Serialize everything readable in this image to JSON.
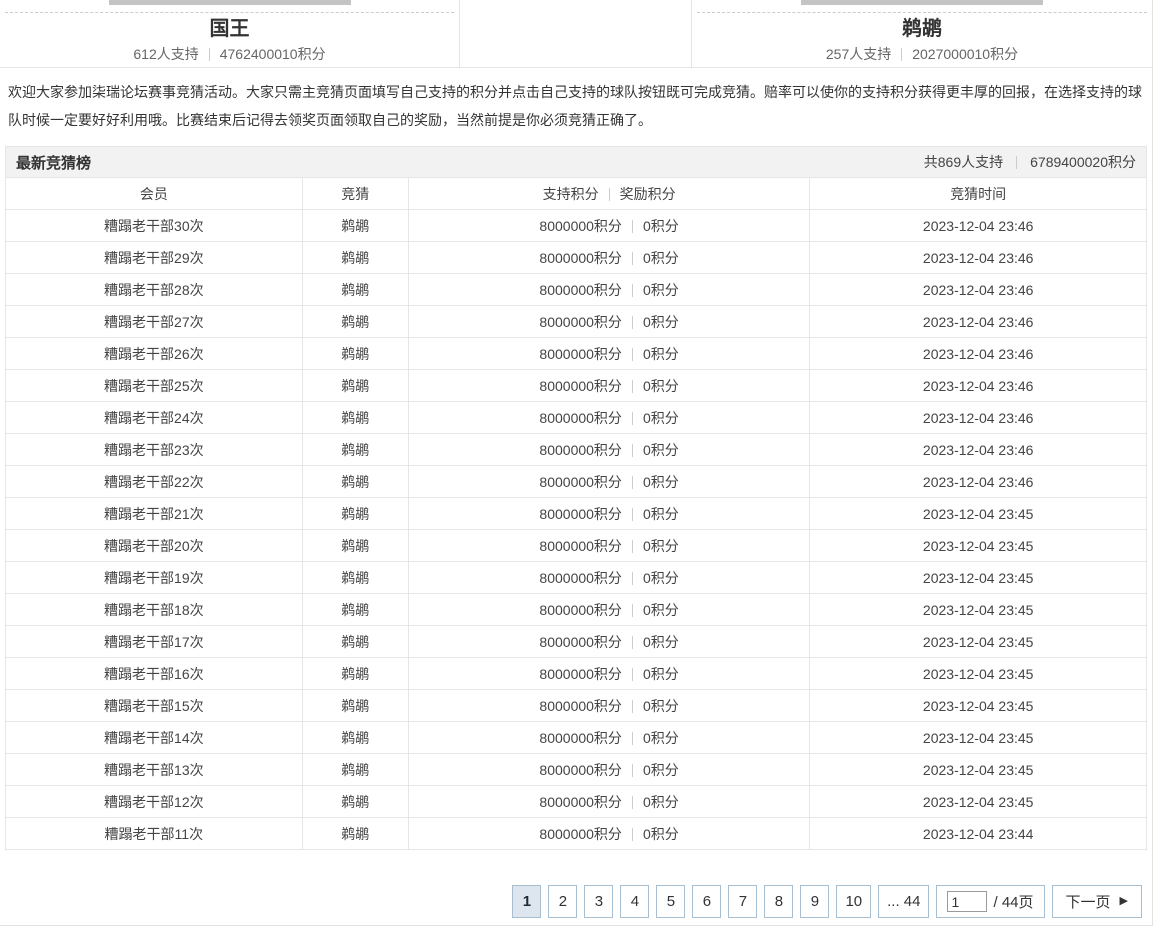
{
  "match": {
    "left_team": {
      "name": "国王",
      "supporters": "612人支持",
      "points": "4762400010积分"
    },
    "right_team": {
      "name": "鹈鹕",
      "supporters": "257人支持",
      "points": "2027000010积分"
    }
  },
  "intro": "欢迎大家参加柒瑞论坛赛事竞猜活动。大家只需主竞猜页面填写自己支持的积分并点击自己支持的球队按钮既可完成竞猜。赔率可以使你的支持积分获得更丰厚的回报，在选择支持的球队时候一定要好好利用哦。比赛结束后记得去领奖页面领取自己的奖励，当然前提是你必须竞猜正确了。",
  "board": {
    "title": "最新竞猜榜",
    "total_supporters": "共869人支持",
    "total_points": "6789400020积分",
    "columns": {
      "member": "会员",
      "bet": "竞猜",
      "support": "支持积分",
      "reward": "奖励积分",
      "time": "竞猜时间"
    },
    "rows": [
      {
        "member": "糟蹋老干部30次",
        "bet": "鹈鹕",
        "support": "8000000积分",
        "reward": "0积分",
        "time": "2023-12-04 23:46"
      },
      {
        "member": "糟蹋老干部29次",
        "bet": "鹈鹕",
        "support": "8000000积分",
        "reward": "0积分",
        "time": "2023-12-04 23:46"
      },
      {
        "member": "糟蹋老干部28次",
        "bet": "鹈鹕",
        "support": "8000000积分",
        "reward": "0积分",
        "time": "2023-12-04 23:46"
      },
      {
        "member": "糟蹋老干部27次",
        "bet": "鹈鹕",
        "support": "8000000积分",
        "reward": "0积分",
        "time": "2023-12-04 23:46"
      },
      {
        "member": "糟蹋老干部26次",
        "bet": "鹈鹕",
        "support": "8000000积分",
        "reward": "0积分",
        "time": "2023-12-04 23:46"
      },
      {
        "member": "糟蹋老干部25次",
        "bet": "鹈鹕",
        "support": "8000000积分",
        "reward": "0积分",
        "time": "2023-12-04 23:46"
      },
      {
        "member": "糟蹋老干部24次",
        "bet": "鹈鹕",
        "support": "8000000积分",
        "reward": "0积分",
        "time": "2023-12-04 23:46"
      },
      {
        "member": "糟蹋老干部23次",
        "bet": "鹈鹕",
        "support": "8000000积分",
        "reward": "0积分",
        "time": "2023-12-04 23:46"
      },
      {
        "member": "糟蹋老干部22次",
        "bet": "鹈鹕",
        "support": "8000000积分",
        "reward": "0积分",
        "time": "2023-12-04 23:46"
      },
      {
        "member": "糟蹋老干部21次",
        "bet": "鹈鹕",
        "support": "8000000积分",
        "reward": "0积分",
        "time": "2023-12-04 23:45"
      },
      {
        "member": "糟蹋老干部20次",
        "bet": "鹈鹕",
        "support": "8000000积分",
        "reward": "0积分",
        "time": "2023-12-04 23:45"
      },
      {
        "member": "糟蹋老干部19次",
        "bet": "鹈鹕",
        "support": "8000000积分",
        "reward": "0积分",
        "time": "2023-12-04 23:45"
      },
      {
        "member": "糟蹋老干部18次",
        "bet": "鹈鹕",
        "support": "8000000积分",
        "reward": "0积分",
        "time": "2023-12-04 23:45"
      },
      {
        "member": "糟蹋老干部17次",
        "bet": "鹈鹕",
        "support": "8000000积分",
        "reward": "0积分",
        "time": "2023-12-04 23:45"
      },
      {
        "member": "糟蹋老干部16次",
        "bet": "鹈鹕",
        "support": "8000000积分",
        "reward": "0积分",
        "time": "2023-12-04 23:45"
      },
      {
        "member": "糟蹋老干部15次",
        "bet": "鹈鹕",
        "support": "8000000积分",
        "reward": "0积分",
        "time": "2023-12-04 23:45"
      },
      {
        "member": "糟蹋老干部14次",
        "bet": "鹈鹕",
        "support": "8000000积分",
        "reward": "0积分",
        "time": "2023-12-04 23:45"
      },
      {
        "member": "糟蹋老干部13次",
        "bet": "鹈鹕",
        "support": "8000000积分",
        "reward": "0积分",
        "time": "2023-12-04 23:45"
      },
      {
        "member": "糟蹋老干部12次",
        "bet": "鹈鹕",
        "support": "8000000积分",
        "reward": "0积分",
        "time": "2023-12-04 23:45"
      },
      {
        "member": "糟蹋老干部11次",
        "bet": "鹈鹕",
        "support": "8000000积分",
        "reward": "0积分",
        "time": "2023-12-04 23:44"
      }
    ]
  },
  "pagination": {
    "pages": [
      "1",
      "2",
      "3",
      "4",
      "5",
      "6",
      "7",
      "8",
      "9",
      "10"
    ],
    "active_page": "1",
    "ellipsis_label": "... 44",
    "jump_value": "1",
    "jump_suffix": "/ 44页",
    "next_label": "下一页",
    "next_icon": "▶"
  },
  "colors": {
    "accent_border": "#a9bdd1",
    "active_page_bg": "#dde6ef",
    "bar_bg": "#f2f2f2",
    "table_border": "#e6e6e6",
    "support_bar": "#c4c4c4"
  }
}
